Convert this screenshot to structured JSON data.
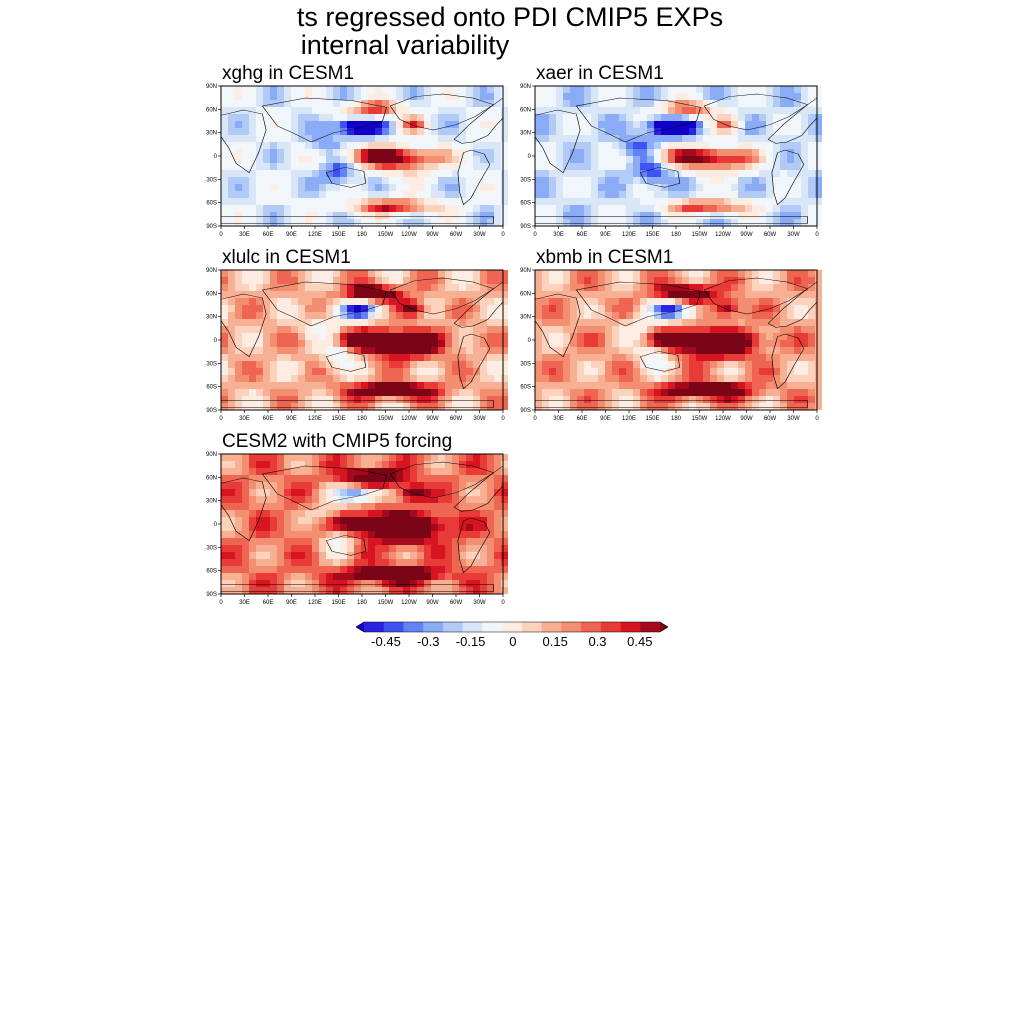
{
  "figure": {
    "title_line1": "ts regressed onto PDI CMIP5 EXPs",
    "title_line2": "internal variability"
  },
  "lat_labels": [
    "90N",
    "60N",
    "30N",
    "0",
    "30S",
    "60S",
    "90S"
  ],
  "lon_labels": [
    "0",
    "30E",
    "60E",
    "90E",
    "120E",
    "150E",
    "180",
    "150W",
    "120W",
    "90W",
    "60W",
    "30W",
    "0"
  ],
  "panels": [
    {
      "title": "xghg in CESM1",
      "tone": -0.15
    },
    {
      "title": "xaer in CESM1",
      "tone": -0.18
    },
    {
      "title": "xlulc in CESM1",
      "tone": 0.12
    },
    {
      "title": "xbmb in CESM1",
      "tone": 0.14
    },
    {
      "title": "CESM2 with CMIP5 forcing",
      "tone": 0.2
    }
  ],
  "colorbar": {
    "labels": [
      "-0.45",
      "-0.3",
      "-0.15",
      "0",
      "0.15",
      "0.3",
      "0.45"
    ],
    "colors": [
      "#1000c8",
      "#2a24e0",
      "#3f52f2",
      "#6383f5",
      "#8aabf5",
      "#b2cbf6",
      "#d8e6f8",
      "#f1f6fb",
      "#fdece1",
      "#fcd2bc",
      "#f8b095",
      "#f38e70",
      "#ee6651",
      "#e83a36",
      "#d71522",
      "#a40a1c",
      "#7a0516"
    ]
  }
}
